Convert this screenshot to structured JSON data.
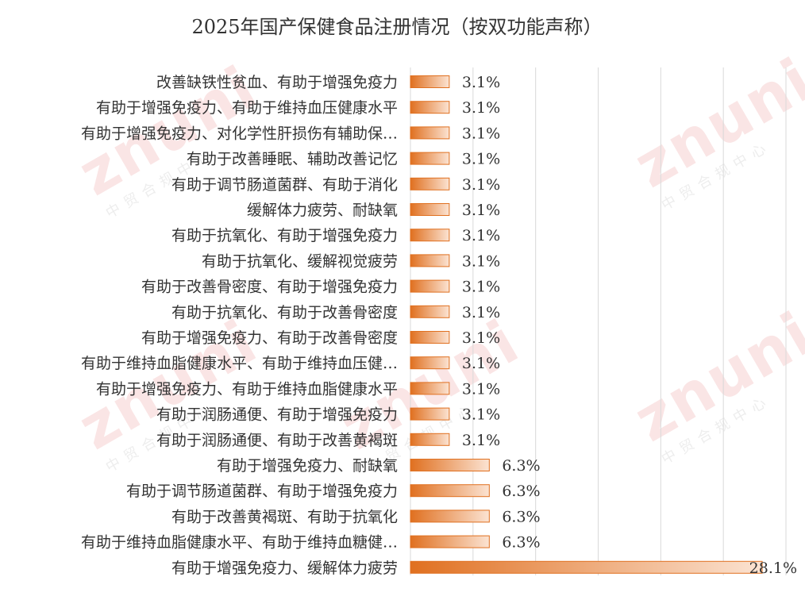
{
  "watermark": {
    "brand": "znuni",
    "org": "中贸合规中心"
  },
  "chart_data": {
    "type": "bar",
    "orientation": "horizontal",
    "title": "2025年国产保健食品注册情况（按双功能声称）",
    "categories": [
      "改善缺铁性贫血、有助于增强免疫力",
      "有助于增强免疫力、有助于维持血压健康水平",
      "有助于增强免疫力、对化学性肝损伤有辅助保…",
      "有助于改善睡眠、辅助改善记忆",
      "有助于调节肠道菌群、有助于消化",
      "缓解体力疲劳、耐缺氧",
      "有助于抗氧化、有助于增强免疫力",
      "有助于抗氧化、缓解视觉疲劳",
      "有助于改善骨密度、有助于增强免疫力",
      "有助于抗氧化、有助于改善骨密度",
      "有助于增强免疫力、有助于改善骨密度",
      "有助于维持血脂健康水平、有助于维持血压健…",
      "有助于增强免疫力、有助于维持血脂健康水平",
      "有助于润肠通便、有助于增强免疫力",
      "有助于润肠通便、有助于改善黄褐斑",
      "有助于增强免疫力、耐缺氧",
      "有助于调节肠道菌群、有助于增强免疫力",
      "有助于改善黄褐斑、有助于抗氧化",
      "有助于维持血脂健康水平、有助于维持血糖健…",
      "有助于增强免疫力、缓解体力疲劳"
    ],
    "values": [
      3.1,
      3.1,
      3.1,
      3.1,
      3.1,
      3.1,
      3.1,
      3.1,
      3.1,
      3.1,
      3.1,
      3.1,
      3.1,
      3.1,
      3.1,
      6.3,
      6.3,
      6.3,
      6.3,
      28.1
    ],
    "data_labels": [
      "3.1%",
      "3.1%",
      "3.1%",
      "3.1%",
      "3.1%",
      "3.1%",
      "3.1%",
      "3.1%",
      "3.1%",
      "3.1%",
      "3.1%",
      "3.1%",
      "3.1%",
      "3.1%",
      "3.1%",
      "6.3%",
      "6.3%",
      "6.3%",
      "6.3%",
      "28.1%"
    ],
    "xlim": [
      0,
      30
    ],
    "grid": true,
    "bar_color_dark": "#e07020",
    "bar_color_light": "#fbe3d2",
    "grid_color": "#d9d9d9",
    "text_color": "#333333"
  }
}
